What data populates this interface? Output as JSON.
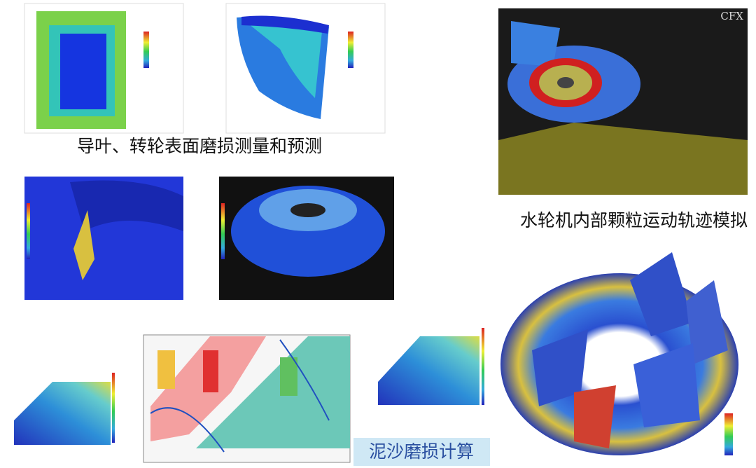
{
  "captions": {
    "wear_measurement": "导叶、转轮表面磨损测量和预测",
    "particle_simulation": "水轮机内部颗粒运动轨迹模拟",
    "sediment_calculation": "泥沙磨损计算"
  },
  "logo": "CFX"
}
